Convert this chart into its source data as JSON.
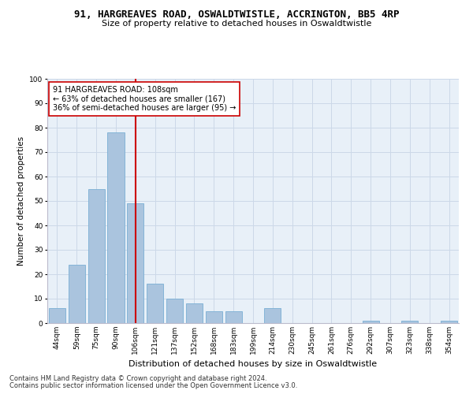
{
  "title": "91, HARGREAVES ROAD, OSWALDTWISTLE, ACCRINGTON, BB5 4RP",
  "subtitle": "Size of property relative to detached houses in Oswaldtwistle",
  "xlabel": "Distribution of detached houses by size in Oswaldtwistle",
  "ylabel": "Number of detached properties",
  "categories": [
    "44sqm",
    "59sqm",
    "75sqm",
    "90sqm",
    "106sqm",
    "121sqm",
    "137sqm",
    "152sqm",
    "168sqm",
    "183sqm",
    "199sqm",
    "214sqm",
    "230sqm",
    "245sqm",
    "261sqm",
    "276sqm",
    "292sqm",
    "307sqm",
    "323sqm",
    "338sqm",
    "354sqm"
  ],
  "values": [
    6,
    24,
    55,
    78,
    49,
    16,
    10,
    8,
    5,
    5,
    0,
    6,
    0,
    0,
    0,
    0,
    1,
    0,
    1,
    0,
    1
  ],
  "bar_color": "#aac4de",
  "bar_edge_color": "#7aafd4",
  "highlight_index": 4,
  "highlight_line_color": "#cc0000",
  "annotation_line1": "91 HARGREAVES ROAD: 108sqm",
  "annotation_line2": "← 63% of detached houses are smaller (167)",
  "annotation_line3": "36% of semi-detached houses are larger (95) →",
  "annotation_box_color": "#ffffff",
  "annotation_box_edge_color": "#cc0000",
  "ylim": [
    0,
    100
  ],
  "yticks": [
    0,
    10,
    20,
    30,
    40,
    50,
    60,
    70,
    80,
    90,
    100
  ],
  "grid_color": "#ccd8e8",
  "bg_color": "#e8f0f8",
  "footer1": "Contains HM Land Registry data © Crown copyright and database right 2024.",
  "footer2": "Contains public sector information licensed under the Open Government Licence v3.0.",
  "title_fontsize": 9,
  "subtitle_fontsize": 8,
  "annotation_fontsize": 7,
  "ylabel_fontsize": 7.5,
  "xlabel_fontsize": 8,
  "tick_fontsize": 6.5,
  "footer_fontsize": 6
}
